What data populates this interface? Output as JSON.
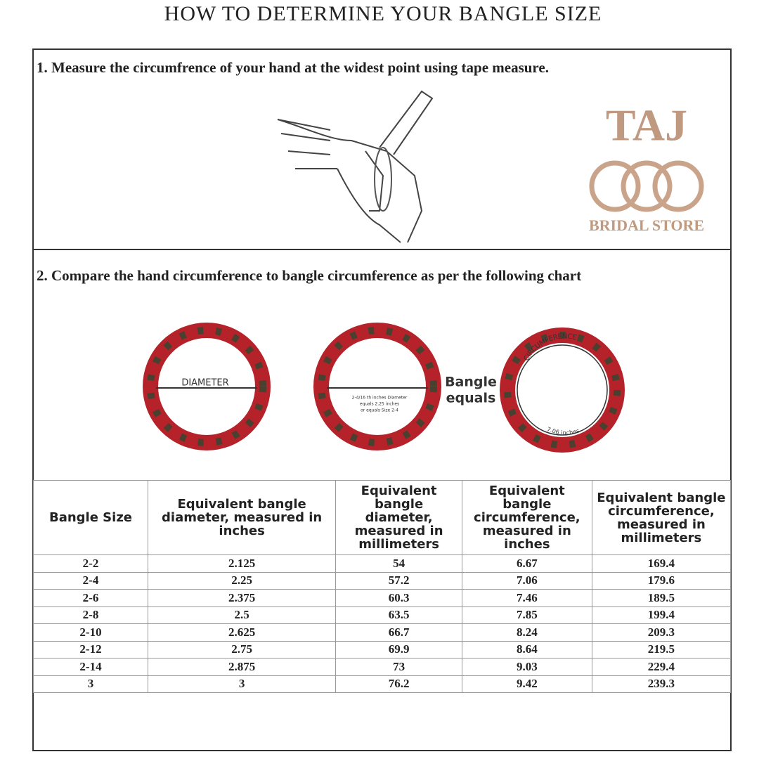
{
  "header": {
    "title": "HOW TO DETERMINE YOUR BANGLE SIZE"
  },
  "step1": {
    "text": "1. Measure the circumfrence of your hand at the widest point using tape measure."
  },
  "logo": {
    "name": "TAJ",
    "subtitle": "BRIDAL STORE"
  },
  "step2": {
    "text": "2. Compare the hand circumference to bangle circumference as per the following chart"
  },
  "diagram": {
    "diameter_label": "DIAMETER",
    "diameter_note": [
      "2-4/16 th inches Diameter",
      "equals 2.25 inches",
      "or equals Size 2-4"
    ],
    "equals_label": [
      "Bangle",
      "equals"
    ],
    "circumference_label": "CIRCUMFERENCE",
    "circumference_value": "7.06 inches"
  },
  "table": {
    "header": [
      "Bangle Size",
      "Equivalent bangle diameter, measured in inches",
      "Equivalent bangle diameter, measured in millimeters",
      "Equivalent bangle circumference, measured in inches",
      "Equivalent bangle circumference, measured in millimeters"
    ],
    "rows": [
      [
        "2-2",
        "2.125",
        "54",
        "6.67",
        "169.4"
      ],
      [
        "2-4",
        "2.25",
        "57.2",
        "7.06",
        "179.6"
      ],
      [
        "2-6",
        "2.375",
        "60.3",
        "7.46",
        "189.5"
      ],
      [
        "2-8",
        "2.5",
        "63.5",
        "7.85",
        "199.4"
      ],
      [
        "2-10",
        "2.625",
        "66.7",
        "8.24",
        "209.3"
      ],
      [
        "2-12",
        "2.75",
        "69.9",
        "8.64",
        "219.5"
      ],
      [
        "2-14",
        "2.875",
        "73",
        "9.03",
        "229.4"
      ],
      [
        "3",
        "3",
        "76.2",
        "9.42",
        "239.3"
      ]
    ]
  }
}
